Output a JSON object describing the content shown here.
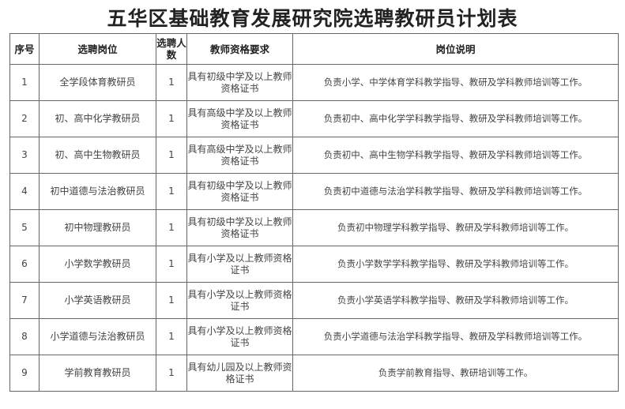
{
  "title": "五华区基础教育发展研究院选聘教研员计划表",
  "headers": [
    "序号",
    "选聘岗位",
    "选聘人数",
    "教师资格要求",
    "岗位说明"
  ],
  "rows": [
    {
      "no": "1",
      "post": "全学段体育教研员",
      "count": "1",
      "qual": "具有初级中学及以上教师资格证书",
      "desc": "负责小学、中学体育学科教学指导、教研及学科教师培训等工作。"
    },
    {
      "no": "2",
      "post": "初、高中化学教研员",
      "count": "1",
      "qual": "具有高级中学及以上教师资格证书",
      "desc": "负责初中、高中化学学科教学指导、教研及学科教师培训等工作。"
    },
    {
      "no": "3",
      "post": "初、高中生物教研员",
      "count": "1",
      "qual": "具有高级中学及以上教师资格证书",
      "desc": "负责初中、高中生物学科教学指导、教研及学科教师培训等工作。"
    },
    {
      "no": "4",
      "post": "初中道德与法治教研员",
      "count": "1",
      "qual": "具有初级中学及以上教师资格证书",
      "desc": "负责初中道德与法治学科教学指导、教研及学科教师培训等工作。"
    },
    {
      "no": "5",
      "post": "初中物理教研员",
      "count": "1",
      "qual": "具有初级中学及以上教师资格证书",
      "desc": "负责初中物理学科教学指导、教研及学科教师培训等工作。"
    },
    {
      "no": "6",
      "post": "小学数学教研员",
      "count": "1",
      "qual": "具有小学及以上教师资格证书",
      "desc": "负责小学数学学科教学指导、教研及学科教师培训等工作。"
    },
    {
      "no": "7",
      "post": "小学英语教研员",
      "count": "1",
      "qual": "具有小学及以上教师资格证书",
      "desc": "负责小学英语学科教学指导、教研及学科教师培训等工作。"
    },
    {
      "no": "8",
      "post": "小学道德与法治教研员",
      "count": "1",
      "qual": "具有小学及以上教师资格证书",
      "desc": "负责小学道德与法治学科教学指导、教研及学科教师培训等工作。"
    },
    {
      "no": "9",
      "post": "学前教育教研员",
      "count": "1",
      "qual": "具有幼儿园及以上教师资格证书",
      "desc": "负责学前教育指导、教研培训等工作。"
    }
  ]
}
